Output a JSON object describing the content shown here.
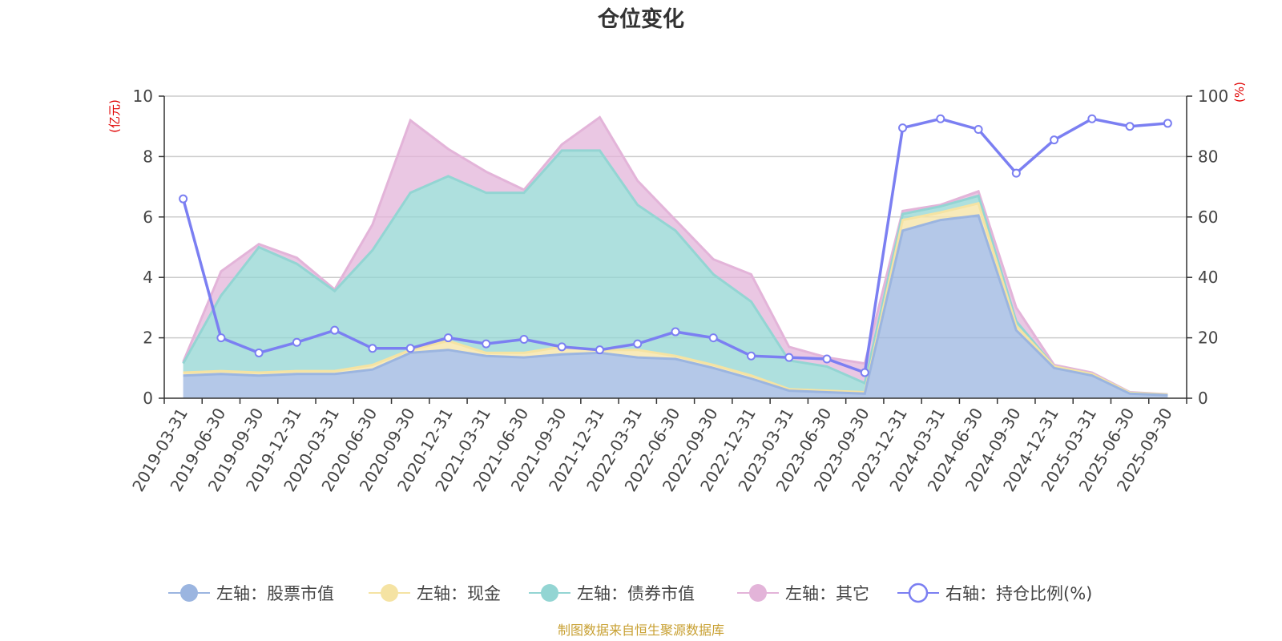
{
  "chart_data": {
    "type": "area",
    "title": "仓位变化",
    "y_left_unit": "(亿元)",
    "y_right_unit": "(%)",
    "y_left_range": [
      0,
      10
    ],
    "y_left_ticks": [
      "0",
      "2",
      "4",
      "6",
      "8",
      "10"
    ],
    "y_right_range": [
      0,
      100
    ],
    "y_right_ticks": [
      "0",
      "20",
      "40",
      "60",
      "80",
      "100"
    ],
    "categories": [
      "2019-03-31",
      "2019-06-30",
      "2019-09-30",
      "2019-12-31",
      "2020-03-31",
      "2020-06-30",
      "2020-09-30",
      "2020-12-31",
      "2021-03-31",
      "2021-06-30",
      "2021-09-30",
      "2021-12-31",
      "2022-03-31",
      "2022-06-30",
      "2022-09-30",
      "2022-12-31",
      "2023-03-31",
      "2023-06-30",
      "2023-09-30",
      "2023-12-31",
      "2024-03-31",
      "2024-06-30",
      "2024-09-30",
      "2024-12-31",
      "2025-03-31",
      "2025-06-30",
      "2025-09-30"
    ],
    "series": [
      {
        "name": "左轴：股票市值",
        "axis": "left",
        "kind": "stacked-area",
        "color": "#9bb5e0",
        "values": [
          0.75,
          0.8,
          0.75,
          0.8,
          0.8,
          0.95,
          1.5,
          1.6,
          1.4,
          1.35,
          1.45,
          1.5,
          1.35,
          1.3,
          1.0,
          0.65,
          0.25,
          0.2,
          0.15,
          5.55,
          5.9,
          6.05,
          2.25,
          1.0,
          0.75,
          0.15,
          0.1
        ]
      },
      {
        "name": "左轴：现金",
        "axis": "left",
        "kind": "stacked-area",
        "color": "#f5e3a3",
        "values": [
          0.1,
          0.1,
          0.1,
          0.1,
          0.1,
          0.15,
          0.1,
          0.3,
          0.1,
          0.15,
          0.25,
          0.1,
          0.25,
          0.1,
          0.1,
          0.1,
          0.05,
          0.05,
          0.05,
          0.35,
          0.25,
          0.4,
          0.15,
          0.05,
          0.05,
          0.03,
          0.02
        ]
      },
      {
        "name": "左轴：债券市值",
        "axis": "left",
        "kind": "stacked-area",
        "color": "#93d5d3",
        "values": [
          0.3,
          2.5,
          4.15,
          3.55,
          2.65,
          3.8,
          5.2,
          5.45,
          5.3,
          5.3,
          6.5,
          6.6,
          4.8,
          4.15,
          3.0,
          2.45,
          0.95,
          0.8,
          0.3,
          0.2,
          0.2,
          0.25,
          0.15,
          0.0,
          0.0,
          0.0,
          0.0
        ]
      },
      {
        "name": "左轴：其它",
        "axis": "left",
        "kind": "stacked-area",
        "color": "#e3b4d9",
        "values": [
          0.05,
          0.8,
          0.1,
          0.2,
          0.05,
          0.85,
          2.4,
          0.9,
          0.7,
          0.1,
          0.2,
          1.1,
          0.8,
          0.35,
          0.5,
          0.9,
          0.45,
          0.3,
          0.65,
          0.1,
          0.05,
          0.15,
          0.45,
          0.05,
          0.05,
          0.02,
          0.01
        ]
      },
      {
        "name": "右轴：持仓比例(%)",
        "axis": "right",
        "kind": "line",
        "color": "#7b7ff2",
        "values": [
          66,
          20,
          15,
          18.5,
          22.5,
          16.5,
          16.5,
          20,
          18,
          19.5,
          17,
          16,
          18,
          22,
          20,
          14,
          13.5,
          13,
          8.5,
          89.5,
          92.5,
          89,
          74.5,
          85.5,
          92.5,
          90,
          91
        ]
      }
    ]
  },
  "source": "制图数据来自恒生聚源数据库"
}
